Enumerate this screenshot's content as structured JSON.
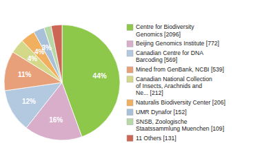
{
  "chart_data": {
    "type": "pie",
    "categories": [
      "Centre for Biodiversity\nGenomics [2096]",
      "Beijing Genomics Institute [772]",
      "Canadian Centre for DNA\nBarcoding [569]",
      "Mined from GenBank, NCBI [539]",
      "Canadian National Collection\nof Insects, Arachnids and\nNe... [212]",
      "Naturalis Biodiversity Center [206]",
      "UMR Dynafor [152]",
      "SNSB, Zoologische\nStaatssammlung Muenchen [109]",
      "11 Others [131]"
    ],
    "values": [
      44,
      16,
      12,
      11,
      4,
      4,
      3,
      2,
      3
    ],
    "value_labels": [
      "44%",
      "16%",
      "12%",
      "11%",
      "4%",
      "4%",
      "3%",
      null,
      null
    ],
    "colors": [
      "#8dc84a",
      "#d9aecb",
      "#b3c9e0",
      "#e8a07a",
      "#d4d98a",
      "#f0b060",
      "#a8c0d8",
      "#b8d8a8",
      "#cc6655"
    ],
    "data_labels": true,
    "legend": "right"
  }
}
